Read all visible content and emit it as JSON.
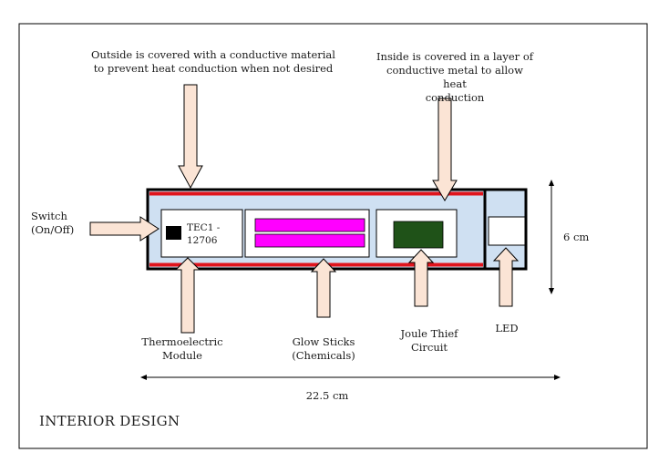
{
  "labels": {
    "outside": [
      "Outside is covered with a conductive material",
      "to prevent heat conduction when not desired"
    ],
    "inside": [
      "Inside is covered in a layer of",
      "conductive metal to allow heat",
      "conduction"
    ],
    "switch": [
      "Switch",
      "(On/Off)"
    ],
    "tec": [
      "TEC1 -",
      "12706"
    ],
    "height": "6 cm",
    "thermo": [
      "Thermoelectric",
      "Module"
    ],
    "glow": [
      "Glow Sticks",
      "(Chemicals)"
    ],
    "joule": [
      "Joule Thief",
      "Circuit"
    ],
    "led": "LED",
    "width": "22.5 cm"
  },
  "title": "INTERIOR DESIGN",
  "colors": {
    "body_fill": "#cfe0f2",
    "red_layer": "#e0141c",
    "glow": "#ff00ff",
    "circuit": "#1f5218",
    "arrow_fill": "#fbe4d5",
    "chip": "#000000"
  }
}
